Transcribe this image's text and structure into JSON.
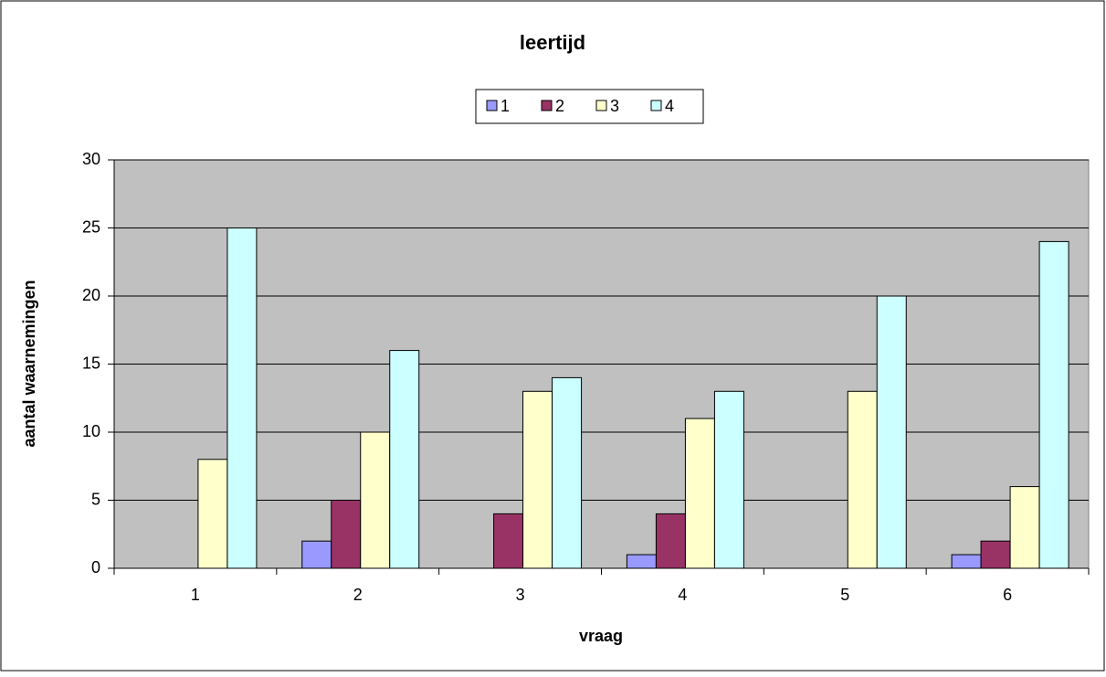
{
  "chart_data": {
    "type": "bar",
    "title": "leertijd",
    "x_label": "vraag",
    "y_label": "aantal waarnemingen",
    "categories": [
      "1",
      "2",
      "3",
      "4",
      "5",
      "6"
    ],
    "series": [
      {
        "name": "1",
        "color": "#9999ff",
        "values": [
          0,
          2,
          0,
          1,
          0,
          1
        ]
      },
      {
        "name": "2",
        "color": "#993366",
        "values": [
          0,
          5,
          4,
          4,
          0,
          2
        ]
      },
      {
        "name": "3",
        "color": "#ffffcc",
        "values": [
          8,
          10,
          13,
          11,
          13,
          6
        ]
      },
      {
        "name": "4",
        "color": "#ccffff",
        "values": [
          25,
          16,
          14,
          13,
          20,
          24
        ]
      }
    ],
    "ylim": [
      0,
      30
    ],
    "yticks": [
      0,
      5,
      10,
      15,
      20,
      25,
      30
    ],
    "grid": true,
    "legend": "top"
  }
}
